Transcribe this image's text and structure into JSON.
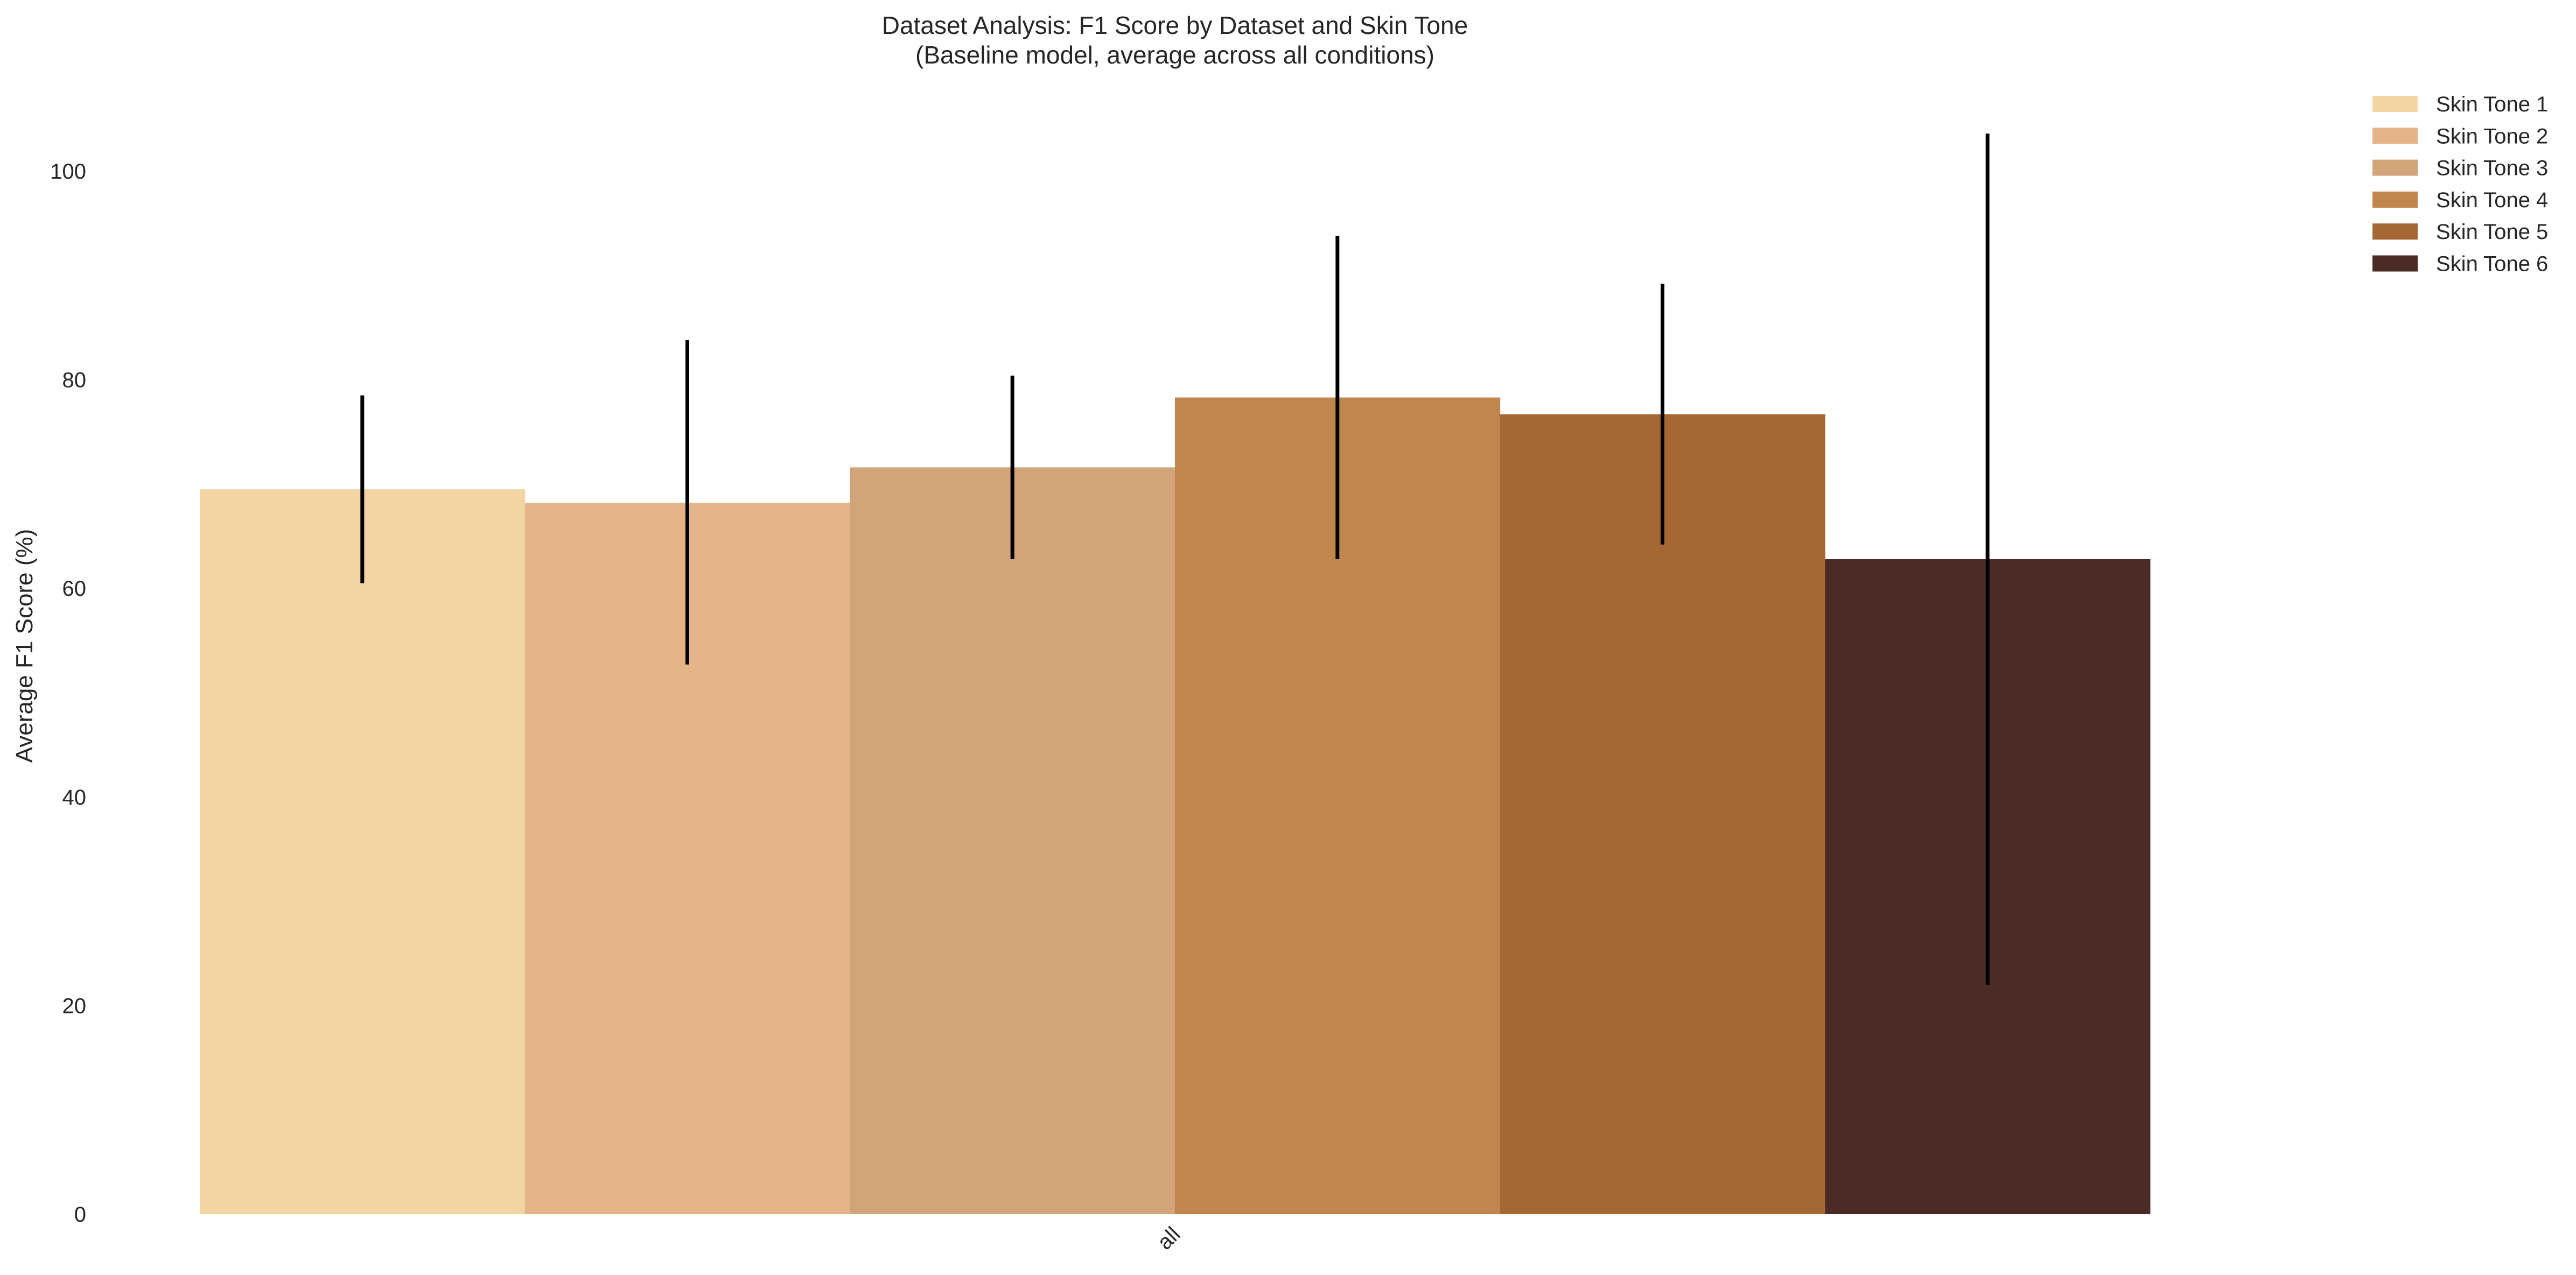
{
  "chart_data": {
    "type": "bar",
    "title": "Dataset Analysis: F1 Score by Dataset and Skin Tone",
    "subtitle": "(Baseline model, average across all conditions)",
    "xlabel": "",
    "ylabel": "Average F1 Score (%)",
    "categories": [
      "all"
    ],
    "ylim": [
      0,
      100
    ],
    "yticks": [
      0,
      20,
      40,
      60,
      80,
      100
    ],
    "grid": false,
    "legend_position": "top-right",
    "series": [
      {
        "name": "Skin Tone 1",
        "color": "#F3D5A3",
        "values": [
          69.5
        ],
        "error_low": [
          60.5
        ],
        "error_high": [
          78.5
        ]
      },
      {
        "name": "Skin Tone 2",
        "color": "#E3B488",
        "values": [
          68.2
        ],
        "error_low": [
          52.7
        ],
        "error_high": [
          83.8
        ]
      },
      {
        "name": "Skin Tone 3",
        "color": "#D2A47A",
        "values": [
          71.6
        ],
        "error_low": [
          62.8
        ],
        "error_high": [
          80.4
        ]
      },
      {
        "name": "Skin Tone 4",
        "color": "#C0864D",
        "values": [
          78.3
        ],
        "error_low": [
          62.8
        ],
        "error_high": [
          93.8
        ]
      },
      {
        "name": "Skin Tone 5",
        "color": "#A56835",
        "values": [
          76.7
        ],
        "error_low": [
          64.2
        ],
        "error_high": [
          89.2
        ]
      },
      {
        "name": "Skin Tone 6",
        "color": "#4A2B26",
        "values": [
          62.8
        ],
        "error_low": [
          22.0
        ],
        "error_high": [
          103.6
        ]
      }
    ]
  }
}
